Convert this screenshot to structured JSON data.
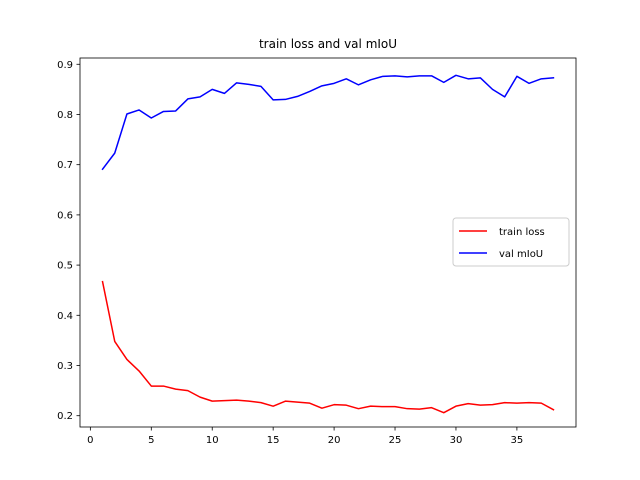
{
  "chart_data": {
    "type": "line",
    "title": "train loss and val mIoU",
    "xlabel": "",
    "ylabel": "",
    "xlim": [
      -0.85,
      39.85
    ],
    "ylim": [
      0.1775,
      0.9125
    ],
    "x_ticks": [
      0,
      5,
      10,
      15,
      20,
      25,
      30,
      35
    ],
    "y_ticks": [
      0.2,
      0.3,
      0.4,
      0.5,
      0.6,
      0.7,
      0.8,
      0.9
    ],
    "x_tick_labels": [
      "0",
      "5",
      "10",
      "15",
      "20",
      "25",
      "30",
      "35"
    ],
    "y_tick_labels": [
      "0.2",
      "0.3",
      "0.4",
      "0.5",
      "0.6",
      "0.7",
      "0.8",
      "0.9"
    ],
    "grid": false,
    "legend_position": "center-right",
    "x": [
      1,
      2,
      3,
      4,
      5,
      6,
      7,
      8,
      9,
      10,
      11,
      12,
      13,
      14,
      15,
      16,
      17,
      18,
      19,
      20,
      21,
      22,
      23,
      24,
      25,
      26,
      27,
      28,
      29,
      30,
      31,
      32,
      33,
      34,
      35,
      36,
      37,
      38
    ],
    "series": [
      {
        "name": "train loss",
        "color": "#ff0000",
        "values": [
          0.467,
          0.348,
          0.312,
          0.289,
          0.259,
          0.259,
          0.253,
          0.25,
          0.237,
          0.229,
          0.23,
          0.231,
          0.229,
          0.226,
          0.219,
          0.229,
          0.227,
          0.225,
          0.215,
          0.222,
          0.221,
          0.214,
          0.219,
          0.218,
          0.218,
          0.214,
          0.213,
          0.216,
          0.206,
          0.219,
          0.224,
          0.221,
          0.222,
          0.226,
          0.225,
          0.226,
          0.225,
          0.212
        ]
      },
      {
        "name": "val mIoU",
        "color": "#0000ff",
        "values": [
          0.691,
          0.723,
          0.801,
          0.809,
          0.793,
          0.806,
          0.807,
          0.831,
          0.835,
          0.85,
          0.842,
          0.863,
          0.86,
          0.856,
          0.829,
          0.83,
          0.836,
          0.846,
          0.857,
          0.862,
          0.871,
          0.859,
          0.869,
          0.876,
          0.877,
          0.875,
          0.877,
          0.877,
          0.864,
          0.878,
          0.871,
          0.873,
          0.85,
          0.835,
          0.876,
          0.862,
          0.871,
          0.873
        ]
      }
    ]
  }
}
